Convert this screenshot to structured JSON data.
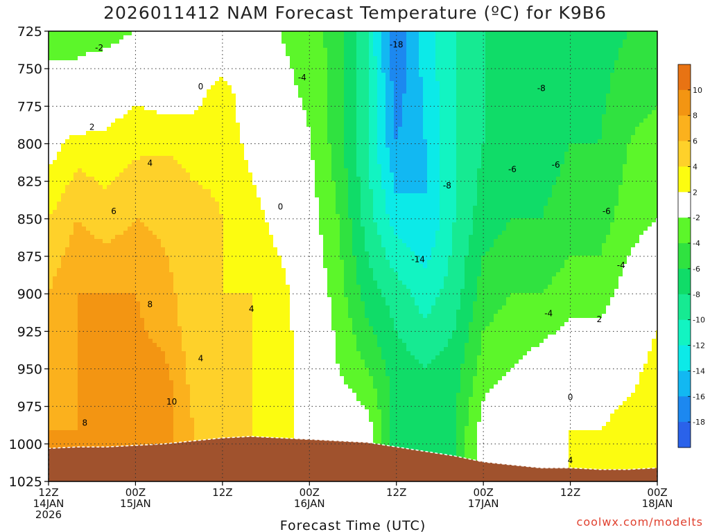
{
  "title": "2026011412 NAM Forecast Temperature (ºC) for K9B6",
  "credit": "coolwx.com/modelts",
  "chart_data": {
    "type": "heatmap",
    "title": "2026011412 NAM Forecast Temperature (ºC) for K9B6",
    "xlabel": "Forecast Time (UTC)",
    "ylabel": "",
    "x_ticks": [
      {
        "hour": 0,
        "label": [
          "12Z",
          "14JAN",
          "2026"
        ]
      },
      {
        "hour": 12,
        "label": [
          "00Z",
          "15JAN"
        ]
      },
      {
        "hour": 24,
        "label": [
          "12Z"
        ]
      },
      {
        "hour": 36,
        "label": [
          "00Z",
          "16JAN"
        ]
      },
      {
        "hour": 48,
        "label": [
          "12Z"
        ]
      },
      {
        "hour": 60,
        "label": [
          "00Z",
          "17JAN"
        ]
      },
      {
        "hour": 72,
        "label": [
          "12Z"
        ]
      },
      {
        "hour": 84,
        "label": [
          "00Z",
          "18JAN"
        ]
      }
    ],
    "y_ticks": [
      725,
      750,
      775,
      800,
      825,
      850,
      875,
      900,
      925,
      950,
      975,
      1000,
      1025
    ],
    "ylim": [
      725,
      1025
    ],
    "xlim": [
      0,
      84
    ],
    "y_units": "hPa",
    "colorbar": {
      "tick_labels": [
        "10",
        "8",
        "6",
        "4",
        "2",
        "-2",
        "-4",
        "-6",
        "-8",
        "-10",
        "-12",
        "-14",
        "-16",
        "-18"
      ],
      "bands": [
        {
          "range": [
            10,
            12
          ],
          "color": "#e87313"
        },
        {
          "range": [
            8,
            10
          ],
          "color": "#f39512"
        },
        {
          "range": [
            6,
            8
          ],
          "color": "#fbb11d"
        },
        {
          "range": [
            4,
            6
          ],
          "color": "#fed12a"
        },
        {
          "range": [
            2,
            4
          ],
          "color": "#fcfc10"
        },
        {
          "range": [
            -2,
            2
          ],
          "color": "#ffffff"
        },
        {
          "range": [
            -4,
            -2
          ],
          "color": "#5cf62a"
        },
        {
          "range": [
            -6,
            -4
          ],
          "color": "#30e240"
        },
        {
          "range": [
            -8,
            -6
          ],
          "color": "#10dc68"
        },
        {
          "range": [
            -10,
            -8
          ],
          "color": "#16ea92"
        },
        {
          "range": [
            -12,
            -10
          ],
          "color": "#12f4c2"
        },
        {
          "range": [
            -14,
            -12
          ],
          "color": "#0ceae8"
        },
        {
          "range": [
            -16,
            -14
          ],
          "color": "#12b8f2"
        },
        {
          "range": [
            -18,
            -16
          ],
          "color": "#1c88f0"
        },
        {
          "range": [
            -20,
            -18
          ],
          "color": "#2a62ea"
        }
      ]
    },
    "columns_hour": [
      0,
      4,
      8,
      12,
      16,
      20,
      24,
      28,
      32,
      36,
      40,
      44,
      48,
      52,
      56,
      60,
      64,
      68,
      72,
      76,
      80,
      84
    ],
    "surface_pressure": [
      1003,
      1002,
      1002,
      1001,
      1000,
      998,
      996,
      995,
      996,
      997,
      998,
      999,
      1002,
      1005,
      1008,
      1012,
      1014,
      1016,
      1016,
      1017,
      1017,
      1016
    ],
    "temperature_profiles": [
      {
        "hour": 0,
        "levels": [
          [
            725,
            -3
          ],
          [
            800,
            1
          ],
          [
            850,
            4
          ],
          [
            900,
            6
          ],
          [
            950,
            7
          ],
          [
            990,
            8
          ]
        ]
      },
      {
        "hour": 4,
        "levels": [
          [
            725,
            -3
          ],
          [
            780,
            0
          ],
          [
            800,
            3
          ],
          [
            850,
            6
          ],
          [
            900,
            8
          ],
          [
            950,
            8
          ],
          [
            990,
            8
          ]
        ]
      },
      {
        "hour": 8,
        "levels": [
          [
            725,
            -3
          ],
          [
            760,
            0
          ],
          [
            790,
            2
          ],
          [
            850,
            5
          ],
          [
            900,
            8
          ],
          [
            950,
            9
          ],
          [
            990,
            8
          ]
        ]
      },
      {
        "hour": 12,
        "levels": [
          [
            725,
            -2
          ],
          [
            760,
            1
          ],
          [
            790,
            3
          ],
          [
            850,
            6
          ],
          [
            900,
            8
          ],
          [
            950,
            9
          ],
          [
            990,
            8
          ]
        ]
      },
      {
        "hour": 16,
        "levels": [
          [
            725,
            -2
          ],
          [
            780,
            2
          ],
          [
            820,
            5
          ],
          [
            870,
            6
          ],
          [
            920,
            7
          ],
          [
            960,
            9
          ],
          [
            990,
            9
          ]
        ]
      },
      {
        "hour": 20,
        "levels": [
          [
            725,
            -1
          ],
          [
            760,
            1
          ],
          [
            800,
            3
          ],
          [
            850,
            5
          ],
          [
            900,
            5
          ],
          [
            950,
            5
          ],
          [
            990,
            6
          ]
        ]
      },
      {
        "hour": 24,
        "levels": [
          [
            725,
            0
          ],
          [
            770,
            3
          ],
          [
            850,
            4
          ],
          [
            900,
            4
          ],
          [
            950,
            4
          ],
          [
            990,
            5
          ]
        ]
      },
      {
        "hour": 28,
        "levels": [
          [
            725,
            0
          ],
          [
            790,
            1
          ],
          [
            850,
            3
          ],
          [
            900,
            4
          ],
          [
            950,
            4
          ],
          [
            990,
            4
          ]
        ]
      },
      {
        "hour": 32,
        "levels": [
          [
            725,
            -2
          ],
          [
            790,
            -1
          ],
          [
            850,
            1
          ],
          [
            900,
            3
          ],
          [
            950,
            3
          ],
          [
            990,
            3
          ]
        ]
      },
      {
        "hour": 36,
        "levels": [
          [
            725,
            -3
          ],
          [
            790,
            -2
          ],
          [
            850,
            -1
          ],
          [
            900,
            0
          ],
          [
            950,
            1
          ],
          [
            990,
            1
          ]
        ]
      },
      {
        "hour": 40,
        "levels": [
          [
            725,
            -5
          ],
          [
            800,
            -5
          ],
          [
            850,
            -4
          ],
          [
            900,
            -3
          ],
          [
            950,
            -2
          ],
          [
            990,
            0
          ]
        ]
      },
      {
        "hour": 44,
        "levels": [
          [
            725,
            -10
          ],
          [
            800,
            -10
          ],
          [
            850,
            -9
          ],
          [
            900,
            -7
          ],
          [
            950,
            -4
          ],
          [
            990,
            -1
          ]
        ]
      },
      {
        "hour": 48,
        "levels": [
          [
            725,
            -18
          ],
          [
            800,
            -16
          ],
          [
            850,
            -13
          ],
          [
            900,
            -9
          ],
          [
            950,
            -7
          ]
        ]
      },
      {
        "hour": 52,
        "levels": [
          [
            725,
            -13
          ],
          [
            800,
            -14
          ],
          [
            850,
            -14
          ],
          [
            900,
            -11
          ],
          [
            950,
            -8
          ]
        ]
      },
      {
        "hour": 56,
        "levels": [
          [
            725,
            -10
          ],
          [
            800,
            -10
          ],
          [
            850,
            -10
          ],
          [
            900,
            -9
          ],
          [
            950,
            -7
          ],
          [
            990,
            -6
          ]
        ]
      },
      {
        "hour": 60,
        "levels": [
          [
            725,
            -8
          ],
          [
            800,
            -8
          ],
          [
            850,
            -7
          ],
          [
            900,
            -5
          ],
          [
            950,
            -3
          ],
          [
            990,
            -1
          ]
        ]
      },
      {
        "hour": 64,
        "levels": [
          [
            725,
            -8
          ],
          [
            800,
            -7
          ],
          [
            850,
            -6
          ],
          [
            900,
            -4
          ],
          [
            950,
            -2
          ],
          [
            990,
            0
          ]
        ]
      },
      {
        "hour": 68,
        "levels": [
          [
            725,
            -7
          ],
          [
            800,
            -7
          ],
          [
            850,
            -6
          ],
          [
            900,
            -4
          ],
          [
            950,
            -1
          ],
          [
            990,
            1
          ]
        ]
      },
      {
        "hour": 72,
        "levels": [
          [
            725,
            -7
          ],
          [
            800,
            -6
          ],
          [
            850,
            -5
          ],
          [
            900,
            -3
          ],
          [
            950,
            0
          ],
          [
            990,
            2
          ]
        ]
      },
      {
        "hour": 76,
        "levels": [
          [
            725,
            -7
          ],
          [
            800,
            -6
          ],
          [
            850,
            -5
          ],
          [
            900,
            -3
          ],
          [
            950,
            0
          ],
          [
            990,
            2
          ]
        ]
      },
      {
        "hour": 80,
        "levels": [
          [
            725,
            -6
          ],
          [
            800,
            -4
          ],
          [
            850,
            -3
          ],
          [
            900,
            -1
          ],
          [
            950,
            1
          ],
          [
            990,
            3
          ]
        ]
      },
      {
        "hour": 84,
        "levels": [
          [
            725,
            -6
          ],
          [
            800,
            -3
          ],
          [
            850,
            -2
          ],
          [
            900,
            1
          ],
          [
            950,
            3
          ],
          [
            990,
            4
          ]
        ]
      }
    ],
    "contour_labels": [
      {
        "hour": 7,
        "p": 736,
        "text": "-2"
      },
      {
        "hour": 6,
        "p": 789,
        "text": "2"
      },
      {
        "hour": 14,
        "p": 813,
        "text": "4"
      },
      {
        "hour": 9,
        "p": 845,
        "text": "6"
      },
      {
        "hour": 14,
        "p": 907,
        "text": "8"
      },
      {
        "hour": 17,
        "p": 972,
        "text": "10"
      },
      {
        "hour": 5,
        "p": 986,
        "text": "8"
      },
      {
        "hour": 21,
        "p": 762,
        "text": "0"
      },
      {
        "hour": 21,
        "p": 943,
        "text": "4"
      },
      {
        "hour": 28,
        "p": 910,
        "text": "4"
      },
      {
        "hour": 32,
        "p": 842,
        "text": "0"
      },
      {
        "hour": 35,
        "p": 756,
        "text": "-4"
      },
      {
        "hour": 48,
        "p": 734,
        "text": "-18"
      },
      {
        "hour": 51,
        "p": 877,
        "text": "-14"
      },
      {
        "hour": 55,
        "p": 828,
        "text": "-8"
      },
      {
        "hour": 68,
        "p": 763,
        "text": "-8"
      },
      {
        "hour": 70,
        "p": 814,
        "text": "-6"
      },
      {
        "hour": 64,
        "p": 817,
        "text": "-6"
      },
      {
        "hour": 77,
        "p": 845,
        "text": "-6"
      },
      {
        "hour": 79,
        "p": 881,
        "text": "-4"
      },
      {
        "hour": 69,
        "p": 913,
        "text": "-4"
      },
      {
        "hour": 76,
        "p": 917,
        "text": "2"
      },
      {
        "hour": 72,
        "p": 969,
        "text": "0"
      },
      {
        "hour": 72,
        "p": 1011,
        "text": "4"
      }
    ]
  }
}
